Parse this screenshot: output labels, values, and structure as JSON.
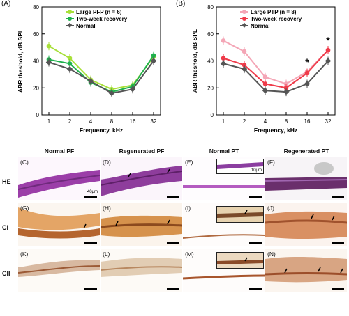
{
  "chart_data": [
    {
      "type": "line",
      "panel": "(A)",
      "xlabel": "Frequency, kHz",
      "ylabel": "ABR theshold, dB SPL",
      "categories": [
        "1",
        "2",
        "4",
        "8",
        "16",
        "32"
      ],
      "yticks": [
        "0",
        "20",
        "40",
        "60",
        "80"
      ],
      "ylim": [
        0,
        80
      ],
      "legend": "top-center",
      "series": [
        {
          "name": "Large PFP (n = 6)",
          "color": "#a8e03a",
          "values": [
            51,
            42,
            26,
            19,
            22,
            43
          ]
        },
        {
          "name": "Two-week recovery",
          "color": "#1fb14d",
          "values": [
            41,
            38,
            24,
            17,
            21,
            44
          ]
        },
        {
          "name": "Normal",
          "color": "#555555",
          "values": [
            39,
            34,
            25,
            16,
            19,
            40
          ]
        }
      ],
      "annotations": []
    },
    {
      "type": "line",
      "panel": "(B)",
      "xlabel": "Frequency, kHz",
      "ylabel": "ABR theshold, dB SPL",
      "categories": [
        "1",
        "2",
        "4",
        "8",
        "16",
        "32"
      ],
      "yticks": [
        "0",
        "20",
        "40",
        "60",
        "80"
      ],
      "ylim": [
        0,
        80
      ],
      "legend": "top-center",
      "series": [
        {
          "name": "Large PTP (n = 8)",
          "color": "#f4a6b6",
          "values": [
            55,
            47,
            28,
            23,
            32,
            48
          ]
        },
        {
          "name": "Two-week recovery",
          "color": "#ef3b4a",
          "values": [
            42,
            37,
            23,
            20,
            31,
            48
          ]
        },
        {
          "name": "Normal",
          "color": "#555555",
          "values": [
            38,
            34,
            18,
            17,
            23,
            40
          ]
        }
      ],
      "annotations": [
        {
          "x": "16",
          "text": "*"
        },
        {
          "x": "32",
          "text": "*"
        }
      ]
    }
  ],
  "histology": {
    "columns": [
      "Normal PF",
      "Regenerated PF",
      "Normal PT",
      "Regenerated PT"
    ],
    "rows": [
      "HE",
      "CI",
      "CII"
    ],
    "panels": [
      "(C)",
      "(D)",
      "(E)",
      "(F)",
      "(G)",
      "(H)",
      "(I)",
      "(J)",
      "(K)",
      "(L)",
      "(M)",
      "(N)"
    ],
    "scale_main": "40μm",
    "scale_inset": "10μm"
  }
}
